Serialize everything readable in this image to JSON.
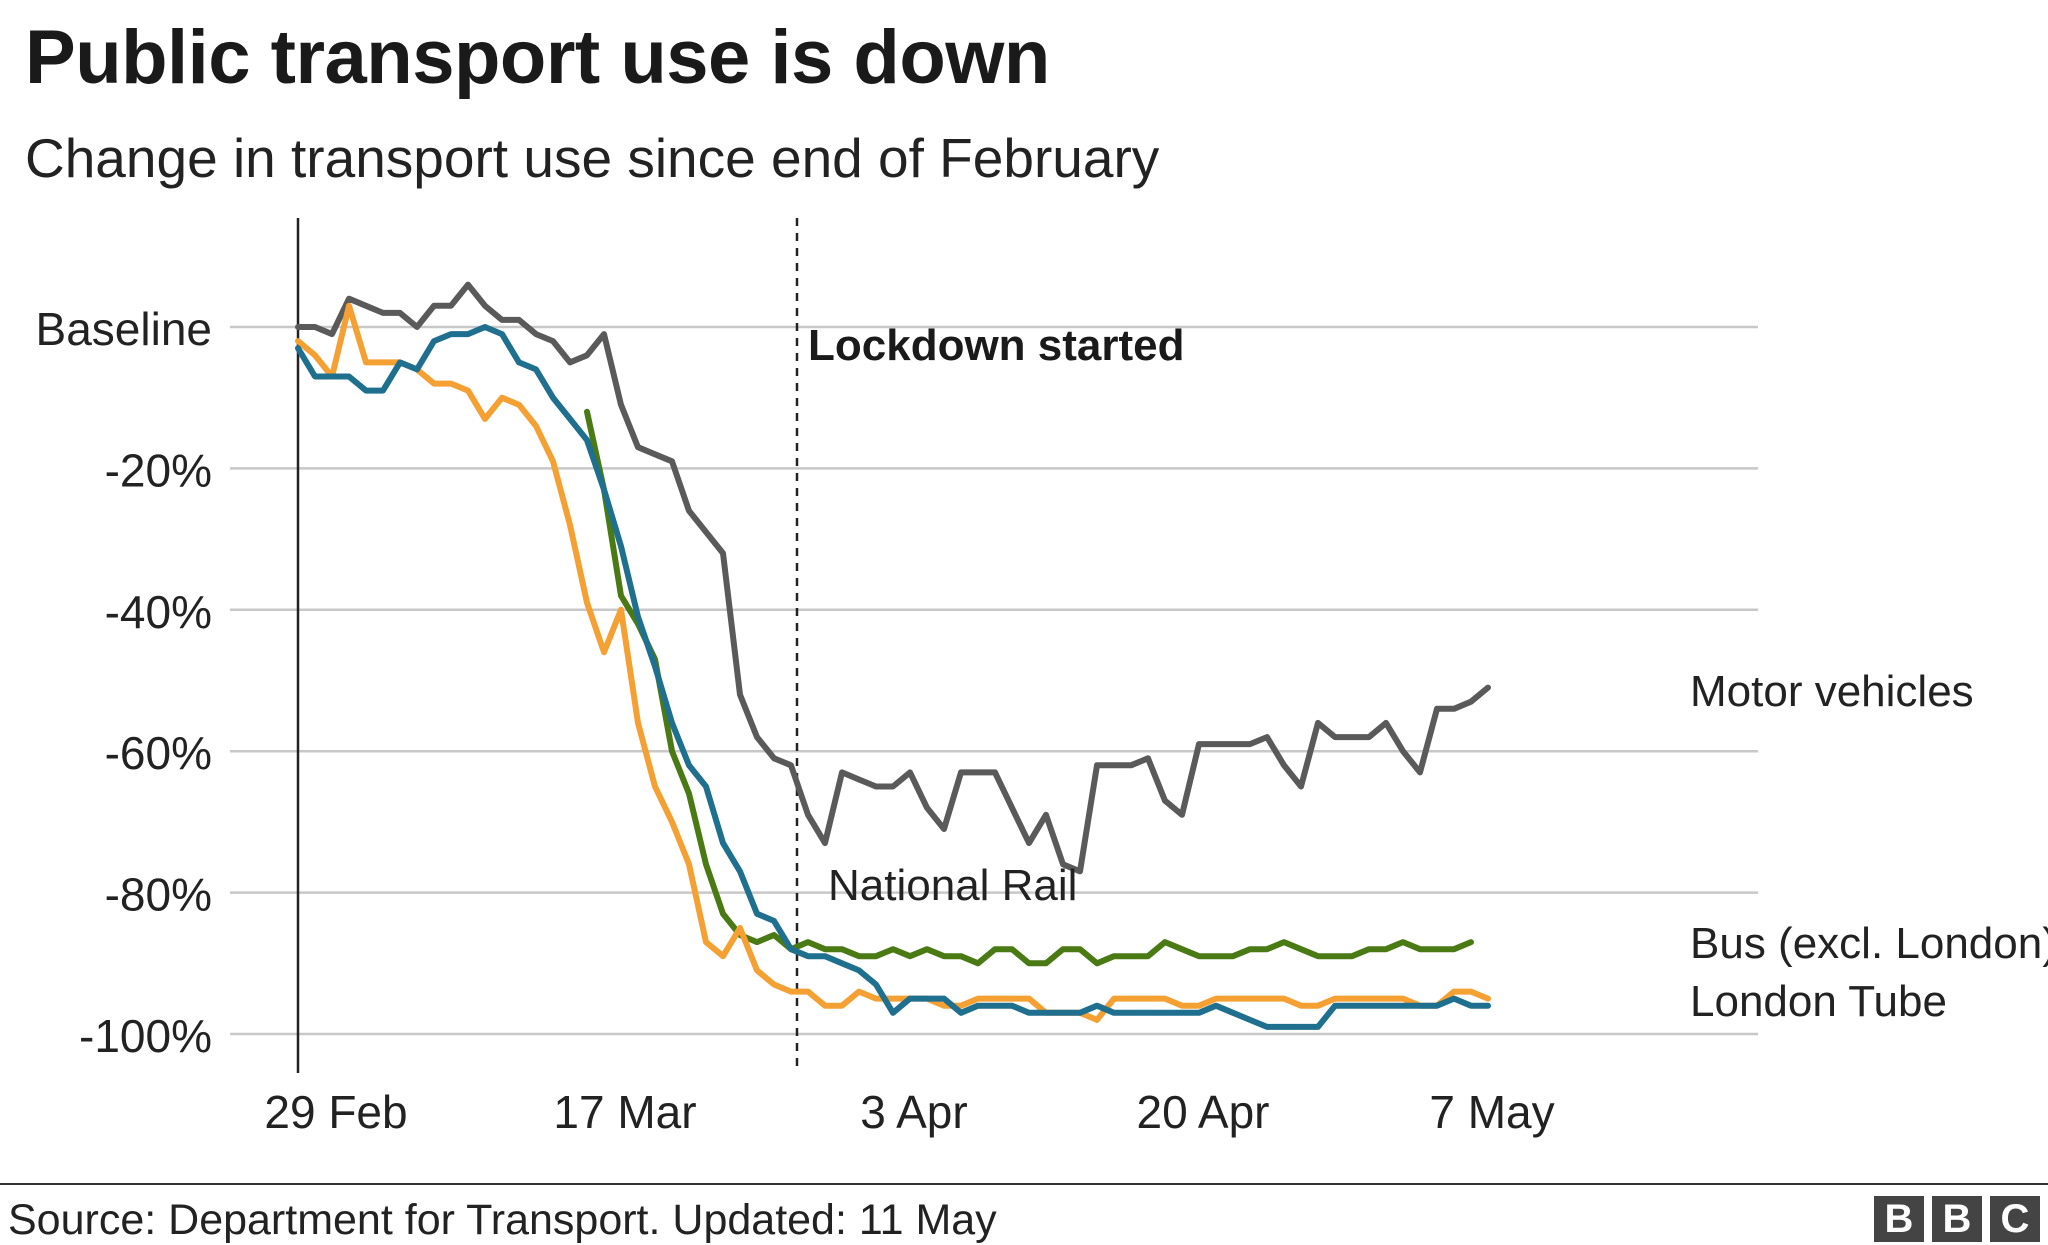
{
  "header": {
    "title": "Public transport use is down",
    "subtitle": "Change in transport use since end of February"
  },
  "footer": {
    "source": "Source: Department for Transport. Updated: 11 May",
    "logo_letters": [
      "B",
      "B",
      "C"
    ]
  },
  "chart_data": {
    "type": "line",
    "title": "Public transport use is down",
    "subtitle": "Change in transport use since end of February",
    "xlabel": "",
    "ylabel": "",
    "x_start": "2020-02-29",
    "x_ticks": [
      {
        "label": "29 Feb",
        "day": 0
      },
      {
        "label": "17 Mar",
        "day": 17
      },
      {
        "label": "3 Apr",
        "day": 34
      },
      {
        "label": "20 Apr",
        "day": 51
      },
      {
        "label": "7 May",
        "day": 68
      }
    ],
    "y_ticks": [
      {
        "label": "Baseline",
        "value": 0
      },
      {
        "label": "-20%",
        "value": -20
      },
      {
        "label": "-40%",
        "value": -40
      },
      {
        "label": "-60%",
        "value": -60
      },
      {
        "label": "-80%",
        "value": -80
      },
      {
        "label": "-100%",
        "value": -100
      }
    ],
    "ylim": [
      -105,
      15
    ],
    "xlim": [
      -2,
      72
    ],
    "grid": true,
    "annotation": {
      "label": "Lockdown started",
      "day": 24
    },
    "series": [
      {
        "name": "Motor vehicles",
        "color": "#5a5a5a",
        "start_day": 0,
        "values": [
          0,
          0,
          -1,
          4,
          3,
          2,
          2,
          0,
          3,
          3,
          6,
          3,
          1,
          1,
          -1,
          -2,
          -5,
          -4,
          -1,
          -11,
          -17,
          -18,
          -19,
          -26,
          -29,
          -32,
          -52,
          -58,
          -61,
          -62,
          -69,
          -73,
          -63,
          -64,
          -65,
          -65,
          -63,
          -68,
          -71,
          -63,
          -63,
          -63,
          -68,
          -73,
          -69,
          -76,
          -77,
          -62,
          -62,
          -62,
          -61,
          -67,
          -69,
          -59,
          -59,
          -59,
          -59,
          -58,
          -62,
          -65,
          -56,
          -58,
          -58,
          -58,
          -56,
          -60,
          -63,
          -54,
          -54,
          -53,
          -51
        ]
      },
      {
        "name": "National Rail",
        "color": "#4a7a14",
        "start_day": 17,
        "values": [
          -12,
          -23,
          -38,
          -42,
          -47,
          -60,
          -66,
          -76,
          -83,
          -86,
          -87,
          -86,
          -88,
          -87,
          -88,
          -88,
          -89,
          -89,
          -88,
          -89,
          -88,
          -89,
          -89,
          -90,
          -88,
          -88,
          -90,
          -90,
          -88,
          -88,
          -90,
          -89,
          -89,
          -89,
          -87,
          -88,
          -89,
          -89,
          -89,
          -88,
          -88,
          -87,
          -88,
          -89,
          -89,
          -89,
          -88,
          -88,
          -87,
          -88,
          -88,
          -88,
          -87
        ]
      },
      {
        "name": "London Tube",
        "color": "#fbe8d2",
        "start_day": 0,
        "values": [
          -2,
          -4,
          -7,
          3,
          -5,
          -5,
          -5,
          -6,
          -8,
          -8,
          -9,
          -13,
          -10,
          -11,
          -14,
          -19,
          -28,
          -39,
          -46,
          -40,
          -56,
          -65,
          -70,
          -76,
          -87,
          -89,
          -85,
          -91,
          -93,
          -94,
          -94,
          -96,
          -96,
          -94,
          -95,
          -95,
          -95,
          -95,
          -96,
          -96,
          -95,
          -95,
          -95,
          -95,
          -97,
          -97,
          -97,
          -98,
          -95,
          -95,
          -95,
          -95,
          -96,
          -96,
          -95,
          -95,
          -95,
          -95,
          -95,
          -96,
          -96,
          -95,
          -95,
          -95,
          -95,
          -95,
          -96,
          -96,
          -94,
          -94,
          -95
        ]
      },
      {
        "name": "Bus (excl. London)",
        "color": "#1f6f8f",
        "start_day": 0,
        "values": [
          -3,
          -7,
          -7,
          -7,
          -9,
          -9,
          -5,
          -6,
          -2,
          -1,
          -1,
          0,
          -1,
          -5,
          -6,
          -10,
          -13,
          -16,
          -23,
          -31,
          -41,
          -48,
          -56,
          -62,
          -65,
          -73,
          -77,
          -83,
          -84,
          -88,
          -89,
          -89,
          -90,
          -91,
          -93,
          -97,
          -95,
          -95,
          -95,
          -97,
          -96,
          -96,
          -96,
          -97,
          -97,
          -97,
          -97,
          -96,
          -97,
          -97,
          -97,
          -97,
          -97,
          -97,
          -96,
          -97,
          -98,
          -99,
          -99,
          -99,
          -99,
          -96,
          -96,
          -96,
          -96,
          -96,
          -96,
          -96,
          -95,
          -96,
          -96
        ]
      }
    ],
    "series_labels": [
      {
        "text": "Motor vehicles",
        "series": 0
      },
      {
        "text": "National Rail",
        "series": 1
      },
      {
        "text": "Bus (excl. London)",
        "series": 3
      },
      {
        "text": "London Tube",
        "series": 2
      }
    ]
  }
}
